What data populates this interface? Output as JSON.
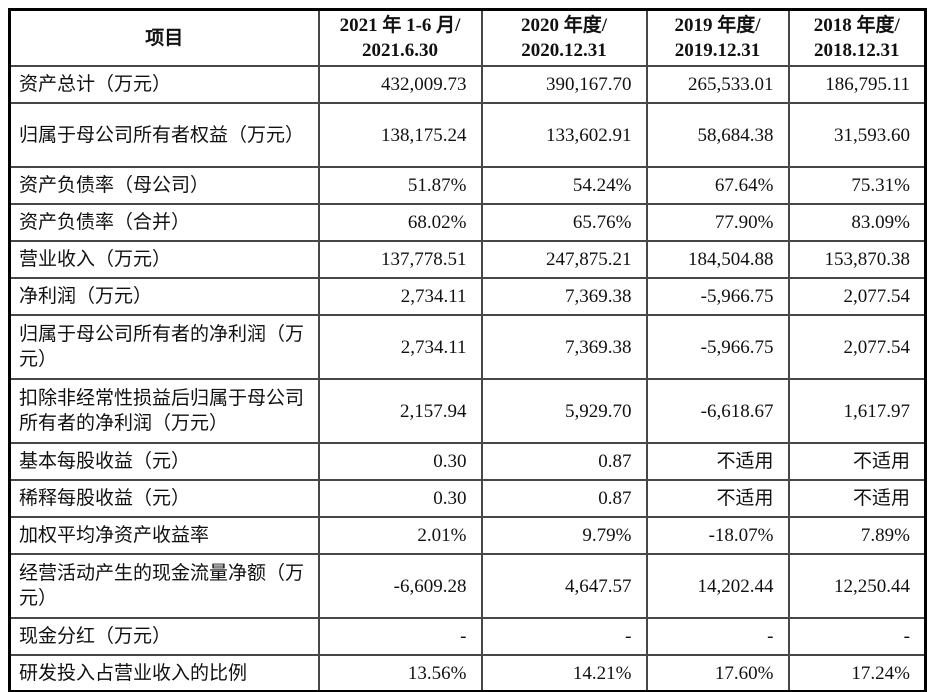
{
  "table": {
    "header": {
      "item_col": "项目",
      "period_cols": [
        "2021 年 1-6 月/\n2021.6.30",
        "2020 年度/\n2020.12.31",
        "2019 年度/\n2019.12.31",
        "2018 年度/\n2018.12.31"
      ]
    },
    "rows": [
      {
        "label": "资产总计（万元）",
        "values": [
          "432,009.73",
          "390,167.70",
          "265,533.01",
          "186,795.11"
        ]
      },
      {
        "label": "归属于母公司所有者权益（万元）",
        "values": [
          "138,175.24",
          "133,602.91",
          "58,684.38",
          "31,593.60"
        ]
      },
      {
        "label": "资产负债率（母公司）",
        "values": [
          "51.87%",
          "54.24%",
          "67.64%",
          "75.31%"
        ]
      },
      {
        "label": "资产负债率（合并）",
        "values": [
          "68.02%",
          "65.76%",
          "77.90%",
          "83.09%"
        ]
      },
      {
        "label": "营业收入（万元）",
        "values": [
          "137,778.51",
          "247,875.21",
          "184,504.88",
          "153,870.38"
        ]
      },
      {
        "label": "净利润（万元）",
        "values": [
          "2,734.11",
          "7,369.38",
          "-5,966.75",
          "2,077.54"
        ]
      },
      {
        "label": "归属于母公司所有者的净利润（万元）",
        "values": [
          "2,734.11",
          "7,369.38",
          "-5,966.75",
          "2,077.54"
        ]
      },
      {
        "label": "扣除非经常性损益后归属于母公司所有者的净利润（万元）",
        "values": [
          "2,157.94",
          "5,929.70",
          "-6,618.67",
          "1,617.97"
        ]
      },
      {
        "label": "基本每股收益（元）",
        "values": [
          "0.30",
          "0.87",
          "不适用",
          "不适用"
        ]
      },
      {
        "label": "稀释每股收益（元）",
        "values": [
          "0.30",
          "0.87",
          "不适用",
          "不适用"
        ]
      },
      {
        "label": "加权平均净资产收益率",
        "values": [
          "2.01%",
          "9.79%",
          "-18.07%",
          "7.89%"
        ]
      },
      {
        "label": "经营活动产生的现金流量净额（万元）",
        "values": [
          "-6,609.28",
          "4,647.57",
          "14,202.44",
          "12,250.44"
        ]
      },
      {
        "label": "现金分红（万元）",
        "values": [
          "-",
          "-",
          "-",
          "-"
        ]
      },
      {
        "label": "研发投入占营业收入的比例",
        "values": [
          "13.56%",
          "14.21%",
          "17.60%",
          "17.24%"
        ]
      }
    ]
  }
}
